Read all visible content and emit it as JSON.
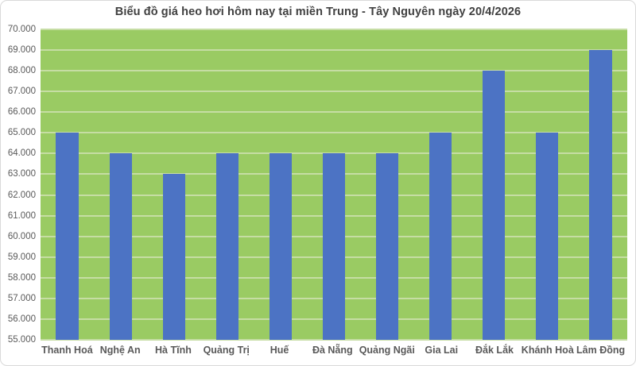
{
  "chart_data": {
    "type": "bar",
    "title": "Biểu đồ giá heo hơi hôm nay tại miền Trung - Tây Nguyên ngày 20/4/2026",
    "categories": [
      "Thanh Hoá",
      "Nghệ An",
      "Hà Tĩnh",
      "Quảng Trị",
      "Huế",
      "Đà Nẵng",
      "Quảng Ngãi",
      "Gia Lai",
      "Đắk Lắk",
      "Khánh Hoà",
      "Lâm Đồng"
    ],
    "values": [
      65000,
      64000,
      63000,
      64000,
      64000,
      64000,
      64000,
      65000,
      68000,
      65000,
      69000
    ],
    "xlabel": "",
    "ylabel": "",
    "ylim": [
      55000,
      70000
    ],
    "ytick_step": 1000,
    "ytick_labels": [
      "70.000",
      "69.000",
      "68.000",
      "67.000",
      "66.000",
      "65.000",
      "64.000",
      "63.000",
      "62.000",
      "61.000",
      "60.000",
      "59.000",
      "58.000",
      "57.000",
      "56.000",
      "55.000"
    ],
    "grid": true,
    "legend": "none",
    "colors": {
      "bar": "#4C73C4",
      "plot_bg": "#9ACB63",
      "gridline": "#C6DDA4",
      "title": "#404040",
      "axis_text": "#595959",
      "page_bg": "#FFFFFF",
      "border": "#D9D9D9"
    }
  }
}
